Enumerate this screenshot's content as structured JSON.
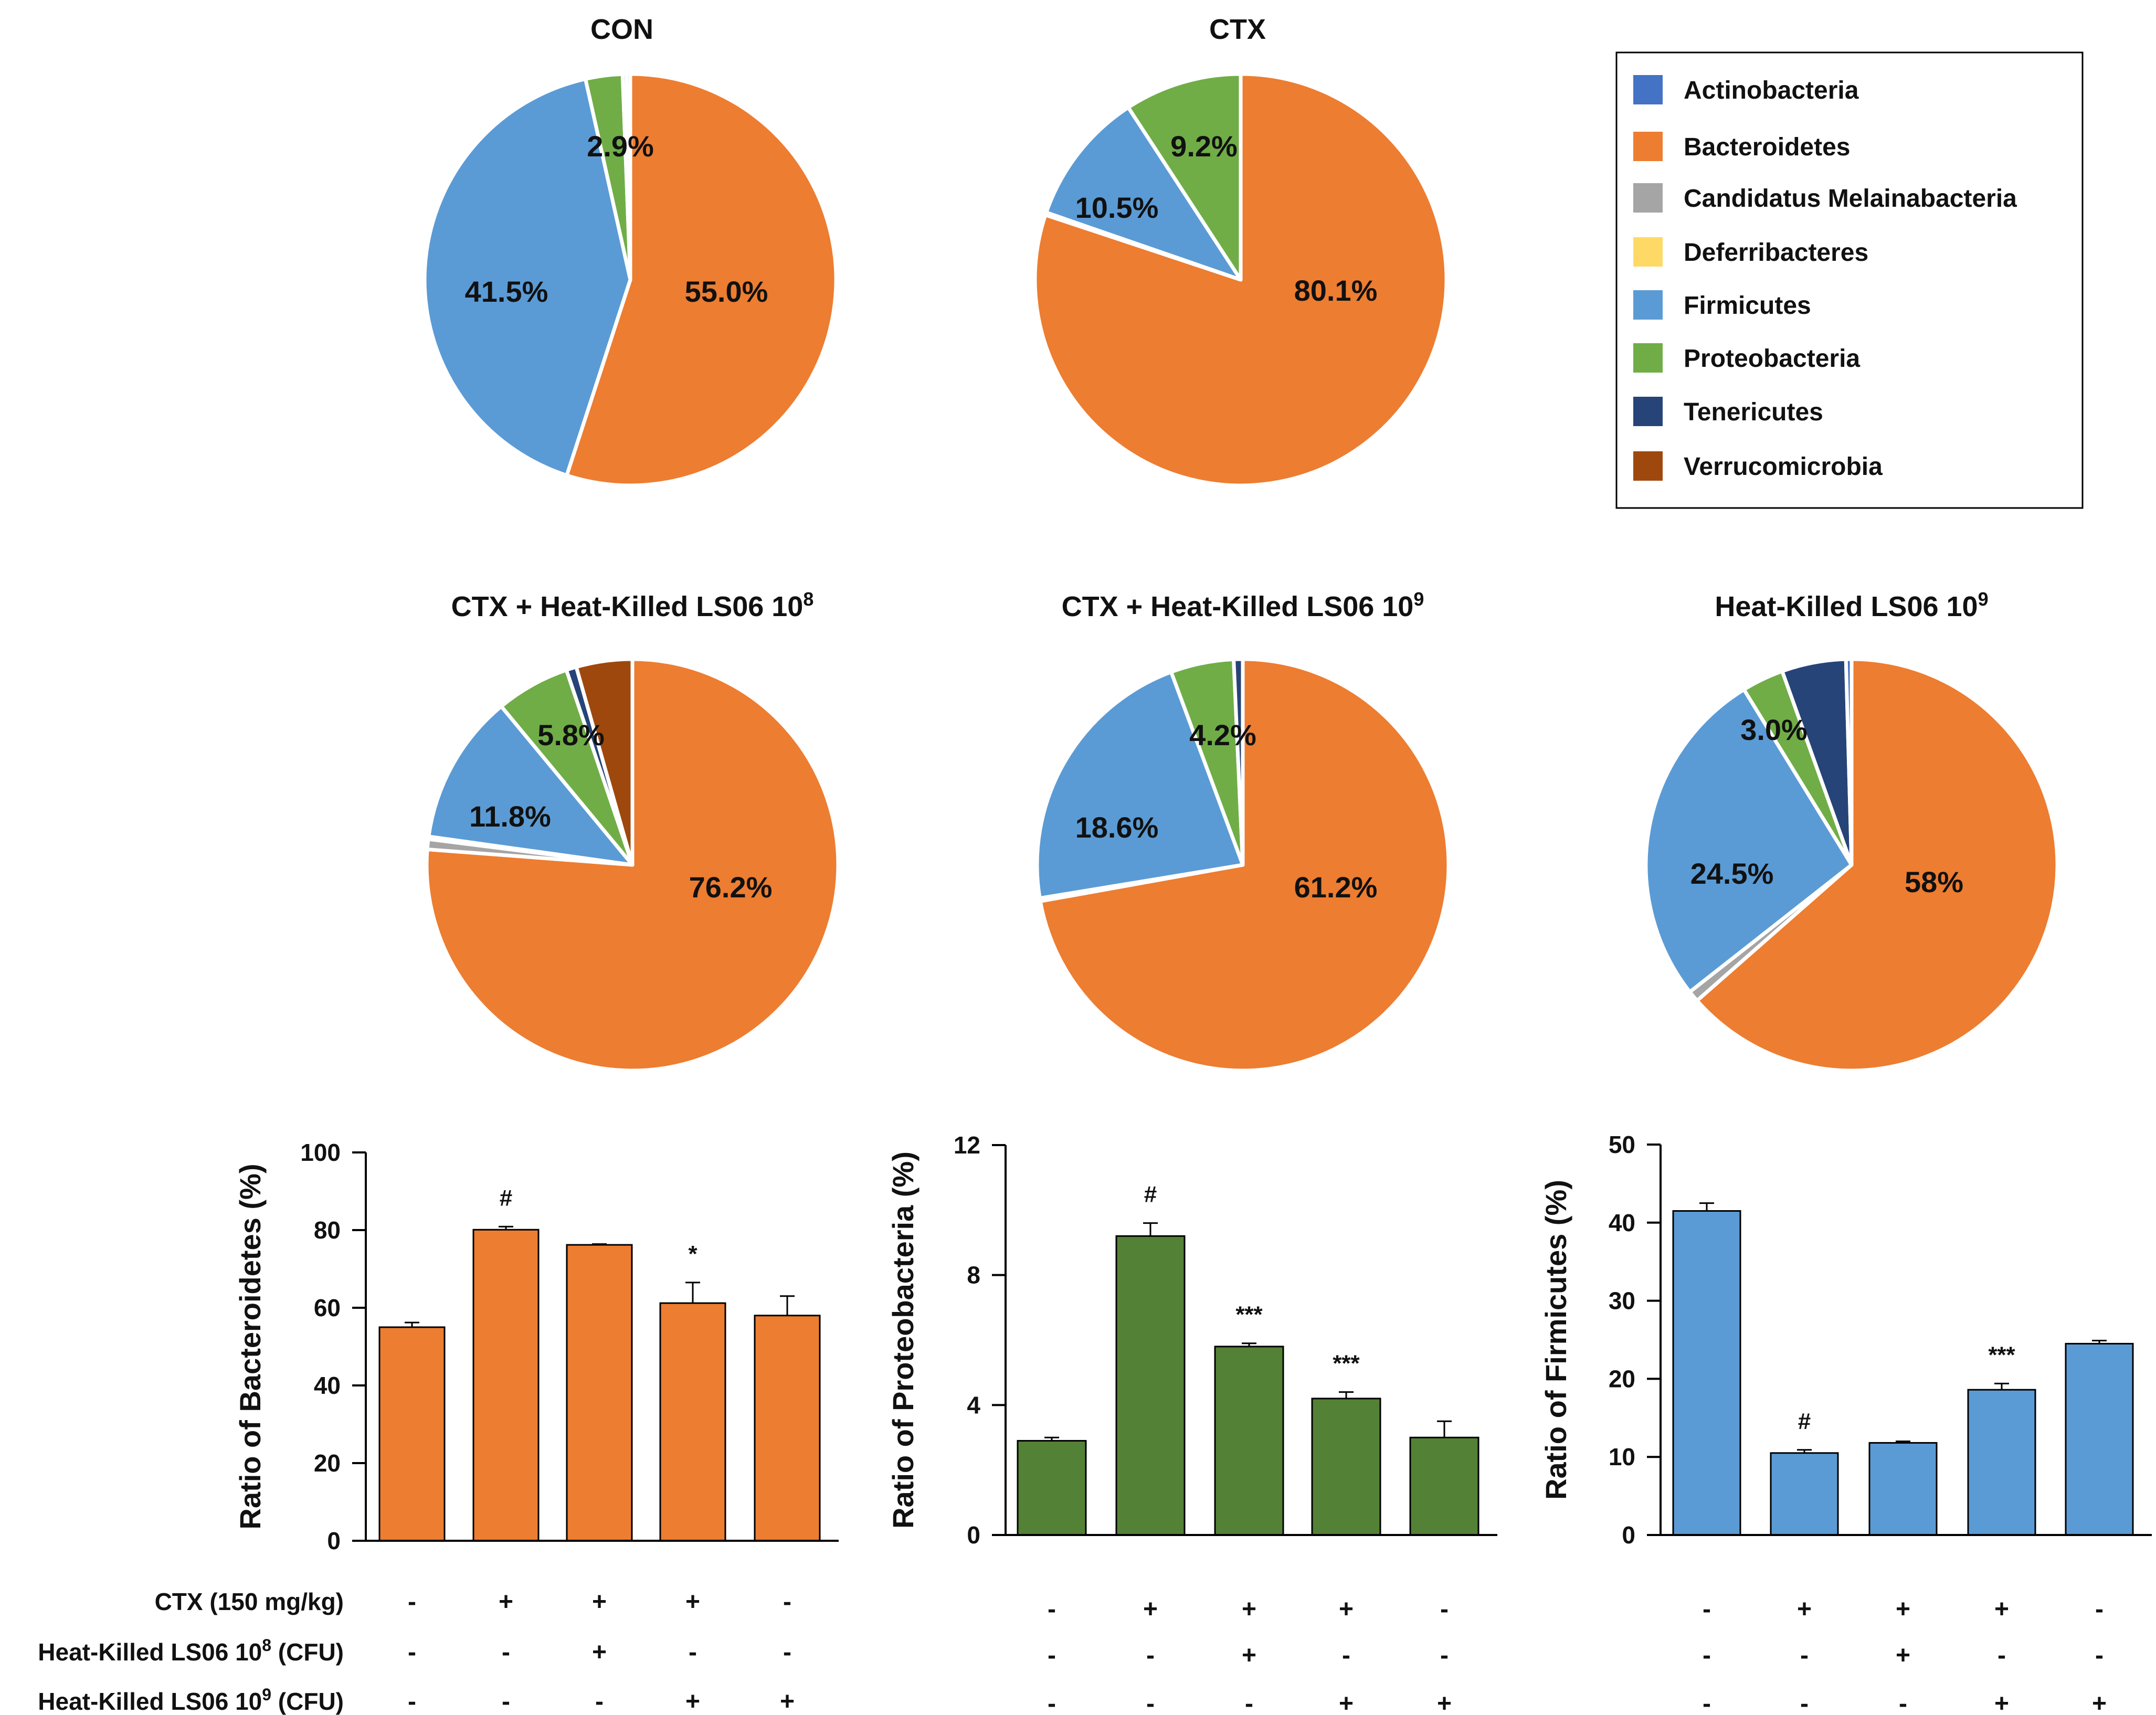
{
  "colors": {
    "Actinobacteria": "#4472C4",
    "Bacteroidetes": "#ED7D31",
    "Candidatus Melainabacteria": "#A5A5A5",
    "Deferribacteres": "#FFD966",
    "Firmicutes": "#5B9BD5",
    "Proteobacteria": "#70AD47",
    "Tenericutes": "#264478",
    "Verrucomicrobia": "#9E480E",
    "green_bar": "#538135",
    "axis": "#000000"
  },
  "legend": {
    "items": [
      {
        "key": "Actinobacteria",
        "label": "Actinobacteria"
      },
      {
        "key": "Bacteroidetes",
        "label": "Bacteroidetes"
      },
      {
        "key": "Candidatus Melainabacteria",
        "label": "Candidatus  Melainabacteria"
      },
      {
        "key": "Deferribacteres",
        "label": "Deferribacteres"
      },
      {
        "key": "Firmicutes",
        "label": "Firmicutes"
      },
      {
        "key": "Proteobacteria",
        "label": "Proteobacteria"
      },
      {
        "key": "Tenericutes",
        "label": "Tenericutes"
      },
      {
        "key": "Verrucomicrobia",
        "label": "Verrucomicrobia"
      }
    ]
  },
  "chart_data": [
    {
      "type": "pie",
      "title": "CON",
      "title_sup": "",
      "slices": [
        {
          "name": "Bacteroidetes",
          "value": 55.0,
          "label": "55.0%"
        },
        {
          "name": "Firmicutes",
          "value": 41.5,
          "label": "41.5%"
        },
        {
          "name": "Proteobacteria",
          "value": 2.9,
          "label": "2.9%"
        },
        {
          "name": "Tenericutes",
          "value": 0.3,
          "label": ""
        },
        {
          "name": "Candidatus Melainabacteria",
          "value": 0.3,
          "label": ""
        }
      ]
    },
    {
      "type": "pie",
      "title": "CTX",
      "title_sup": "",
      "slices": [
        {
          "name": "Bacteroidetes",
          "value": 80.1,
          "label": "80.1%"
        },
        {
          "name": "Candidatus Melainabacteria",
          "value": 0.2,
          "label": ""
        },
        {
          "name": "Firmicutes",
          "value": 10.5,
          "label": "10.5%"
        },
        {
          "name": "Proteobacteria",
          "value": 9.2,
          "label": "9.2%"
        }
      ]
    },
    {
      "type": "pie",
      "title": "CTX + Heat-Killed LS06 10",
      "title_sup": "8",
      "slices": [
        {
          "name": "Bacteroidetes",
          "value": 76.2,
          "label": "76.2%"
        },
        {
          "name": "Candidatus Melainabacteria",
          "value": 0.8,
          "label": ""
        },
        {
          "name": "Deferribacteres",
          "value": 0.2,
          "label": ""
        },
        {
          "name": "Firmicutes",
          "value": 11.8,
          "label": "11.8%"
        },
        {
          "name": "Proteobacteria",
          "value": 5.8,
          "label": "5.8%"
        },
        {
          "name": "Tenericutes",
          "value": 0.8,
          "label": ""
        },
        {
          "name": "Verrucomicrobia",
          "value": 4.4,
          "label": ""
        }
      ]
    },
    {
      "type": "pie",
      "title": "CTX + Heat-Killed LS06 10",
      "title_sup": "9",
      "slices": [
        {
          "name": "Bacteroidetes",
          "value": 61.2,
          "label": "61.2%"
        },
        {
          "name": "Candidatus Melainabacteria",
          "value": 0.2,
          "label": ""
        },
        {
          "name": "Firmicutes",
          "value": 18.6,
          "label": "18.6%"
        },
        {
          "name": "Proteobacteria",
          "value": 4.2,
          "label": "4.2%"
        },
        {
          "name": "Tenericutes",
          "value": 0.6,
          "label": ""
        }
      ]
    },
    {
      "type": "pie",
      "title": "Heat-Killed LS06 10",
      "title_sup": "9",
      "slices": [
        {
          "name": "Bacteroidetes",
          "value": 58.0,
          "label": "58%"
        },
        {
          "name": "Candidatus Melainabacteria",
          "value": 0.8,
          "label": ""
        },
        {
          "name": "Firmicutes",
          "value": 24.5,
          "label": "24.5%"
        },
        {
          "name": "Proteobacteria",
          "value": 3.0,
          "label": "3.0%"
        },
        {
          "name": "Tenericutes",
          "value": 4.6,
          "label": ""
        },
        {
          "name": "Actinobacteria",
          "value": 0.4,
          "label": ""
        }
      ]
    },
    {
      "type": "bar",
      "ylabel": "Ratio of Bacteroidetes (%)",
      "ylim": [
        0,
        100
      ],
      "yticks": [
        0,
        20,
        40,
        60,
        80,
        100
      ],
      "color_key": "Bacteroidetes",
      "values": [
        55.0,
        80.1,
        76.2,
        61.2,
        58.0
      ],
      "errors": [
        1.2,
        0.8,
        0.2,
        5.3,
        5.0
      ],
      "annotations": [
        "",
        "#",
        "",
        "*",
        ""
      ]
    },
    {
      "type": "bar",
      "ylabel": "Ratio of Proteobacteria  (%)",
      "ylim": [
        0,
        12
      ],
      "yticks": [
        0,
        4,
        8,
        12
      ],
      "color_key": "green_bar",
      "values": [
        2.9,
        9.2,
        5.8,
        4.2,
        3.0
      ],
      "errors": [
        0.1,
        0.4,
        0.1,
        0.2,
        0.5
      ],
      "annotations": [
        "",
        "#",
        "***",
        "***",
        ""
      ]
    },
    {
      "type": "bar",
      "ylabel": "Ratio of Firmicutes  (%)",
      "ylim": [
        0,
        50
      ],
      "yticks": [
        0,
        10,
        20,
        30,
        40,
        50
      ],
      "color_key": "Firmicutes",
      "values": [
        41.5,
        10.5,
        11.8,
        18.6,
        24.5
      ],
      "errors": [
        1.0,
        0.4,
        0.2,
        0.8,
        0.4
      ],
      "annotations": [
        "",
        "#",
        "",
        "***",
        ""
      ]
    }
  ],
  "treatment_table": {
    "rows": [
      {
        "label": "CTX (150 mg/kg)",
        "sup": "",
        "suffix": "",
        "signs": [
          "-",
          "+",
          "+",
          "+",
          "-"
        ]
      },
      {
        "label": "Heat-Killed LS06 10",
        "sup": "8",
        "suffix": " (CFU)",
        "signs": [
          "-",
          "-",
          "+",
          "-",
          "-"
        ]
      },
      {
        "label": "Heat-Killed LS06 10",
        "sup": "9",
        "suffix": " (CFU)",
        "signs": [
          "-",
          "-",
          "-",
          "+",
          "+"
        ]
      }
    ]
  }
}
